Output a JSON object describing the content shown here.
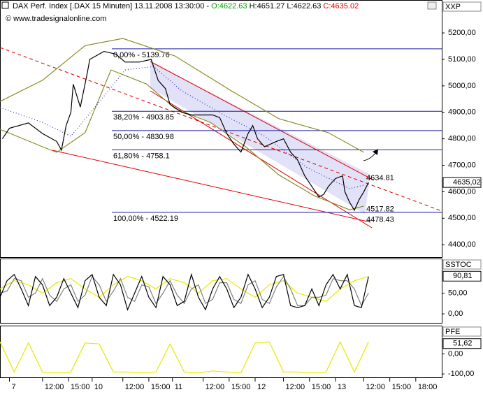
{
  "header": {
    "title": "DAX Perf. Index [.DAX  15 Minuten] 13.11.2008 13:30:00 -",
    "open": "O:4622.63",
    "high_low": "H:4651.27 L:4622.63",
    "close": "C:4635.02"
  },
  "copyright": "© www.tradesignalonline.com",
  "chart_data": [
    {
      "type": "line",
      "title": "XXP",
      "xlim": [
        0,
        187
      ],
      "ylim": [
        4353,
        5319
      ],
      "yticks": [
        {
          "value": 5200,
          "label": "5200,00"
        },
        {
          "value": 5100,
          "label": "5100,00"
        },
        {
          "value": 5000,
          "label": "5000,00"
        },
        {
          "value": 4900,
          "label": "4900,00"
        },
        {
          "value": 4800,
          "label": "4800,00"
        },
        {
          "value": 4700,
          "label": "4700,00"
        },
        {
          "value": 4600,
          "label": "4600,00"
        },
        {
          "value": 4500,
          "label": "4500,00"
        },
        {
          "value": 4400,
          "label": "4400,00"
        }
      ],
      "series": [
        {
          "color": "#8b8b2a",
          "style": "solid",
          "x": [
            0,
            18,
            36,
            52,
            74,
            98,
            118,
            139,
            154
          ],
          "values": [
            4941,
            5021,
            5152,
            5179,
            5113,
            4981,
            4876,
            4823,
            4749
          ]
        },
        {
          "color": "#8b8b2a",
          "style": "solid",
          "x": [
            0,
            18,
            24,
            36,
            47,
            62,
            74,
            89,
            104,
            118,
            133,
            148,
            154
          ],
          "values": [
            4836,
            4770,
            4749,
            4823,
            5060,
            5007,
            4915,
            4862,
            4770,
            4664,
            4585,
            4532,
            4546
          ]
        },
        {
          "color": "#3030d0",
          "style": "dotted",
          "x": [
            0,
            18,
            30,
            41,
            53,
            65,
            77,
            95,
            112,
            130,
            148,
            154
          ],
          "values": [
            4918,
            4862,
            4810,
            4928,
            5060,
            5073,
            4981,
            4889,
            4810,
            4691,
            4612,
            4625
          ]
        },
        {
          "color": "#000000",
          "style": "solid",
          "x": [
            1,
            4,
            12,
            18,
            24,
            26,
            28,
            30,
            31,
            34,
            37,
            38,
            44,
            49,
            53,
            59,
            64,
            67,
            70,
            72,
            77,
            81,
            86,
            90,
            93,
            96,
            99,
            102,
            105,
            107,
            109,
            112,
            117,
            120,
            123,
            126,
            129,
            132,
            135,
            137,
            139,
            142,
            145,
            146,
            148,
            150,
            152,
            154,
            156
          ],
          "values": [
            4800,
            4840,
            4860,
            4820,
            4790,
            4757,
            4850,
            4900,
            5006,
            4920,
            5050,
            5100,
            5130,
            5120,
            5090,
            5090,
            5100,
            5020,
            4990,
            4930,
            4900,
            4890,
            4890,
            4890,
            4880,
            4820,
            4780,
            4750,
            4820,
            4850,
            4800,
            4770,
            4790,
            4800,
            4750,
            4720,
            4660,
            4620,
            4580,
            4590,
            4620,
            4650,
            4660,
            4600,
            4560,
            4530,
            4570,
            4600,
            4635
          ]
        }
      ],
      "levels": [
        {
          "value": 5139.76,
          "label": "0,00% - 5139.76"
        },
        {
          "value": 4903.85,
          "label": "38,20% - 4903.85"
        },
        {
          "value": 4830.98,
          "label": "50,00% - 4830.98"
        },
        {
          "value": 4758.1,
          "label": "61,80% - 4758.1"
        },
        {
          "value": 4522.19,
          "label": "100,00% - 4522.19"
        }
      ],
      "annotations": [
        {
          "value": 4634.81,
          "label": "4634.81"
        },
        {
          "value": 4517.82,
          "label": "4517.82"
        },
        {
          "value": 4478.43,
          "label": "4478.43"
        }
      ],
      "last_value": {
        "value": 4635.02,
        "label": "4635,02"
      }
    },
    {
      "type": "line",
      "title": "SSTOC",
      "xlim": [
        0,
        187
      ],
      "ylim": [
        -21.7,
        131.7
      ],
      "yticks": [
        {
          "value": 50,
          "label": "50,00"
        },
        {
          "value": 0,
          "label": "0,00"
        }
      ],
      "series": [
        {
          "color": "#e8e800",
          "style": "solid",
          "x": [
            0,
            6,
            12,
            18,
            24,
            30,
            36,
            42,
            48,
            54,
            60,
            66,
            72,
            78,
            84,
            90,
            96,
            102,
            108,
            114,
            120,
            126,
            132,
            138,
            144,
            150,
            156
          ],
          "values": [
            60,
            80,
            70,
            50,
            75,
            85,
            60,
            40,
            70,
            90,
            80,
            60,
            85,
            75,
            50,
            80,
            85,
            60,
            40,
            70,
            80,
            50,
            40,
            30,
            60,
            80,
            90
          ]
        },
        {
          "color": "#808080",
          "style": "solid",
          "x": [
            0,
            3,
            6,
            9,
            12,
            15,
            18,
            21,
            24,
            27,
            30,
            33,
            36,
            39,
            42,
            45,
            48,
            51,
            54,
            57,
            60,
            63,
            66,
            69,
            72,
            75,
            78,
            81,
            84,
            87,
            90,
            93,
            96,
            99,
            102,
            105,
            108,
            111,
            114,
            117,
            120,
            123,
            126,
            129,
            132,
            135,
            138,
            141,
            144,
            147,
            150,
            153,
            156
          ],
          "values": [
            50,
            55,
            85,
            80,
            40,
            50,
            85,
            45,
            30,
            60,
            70,
            30,
            45,
            90,
            70,
            30,
            55,
            85,
            40,
            30,
            70,
            65,
            25,
            50,
            80,
            45,
            25,
            60,
            70,
            25,
            35,
            75,
            75,
            35,
            25,
            70,
            80,
            35,
            25,
            65,
            90,
            60,
            20,
            20,
            40,
            40,
            45,
            85,
            80,
            80,
            60,
            20,
            50
          ]
        },
        {
          "color": "#000000",
          "style": "solid",
          "x": [
            0,
            3,
            6,
            9,
            12,
            15,
            18,
            21,
            24,
            27,
            30,
            33,
            36,
            39,
            42,
            45,
            48,
            51,
            54,
            57,
            60,
            63,
            66,
            69,
            72,
            75,
            78,
            81,
            84,
            87,
            90,
            93,
            96,
            99,
            102,
            105,
            108,
            111,
            114,
            117,
            120,
            123,
            126,
            129,
            132,
            135,
            138,
            141,
            144,
            147,
            150,
            153,
            156
          ],
          "values": [
            40,
            80,
            95,
            60,
            20,
            90,
            70,
            20,
            40,
            85,
            50,
            15,
            80,
            95,
            40,
            20,
            95,
            70,
            10,
            50,
            90,
            40,
            15,
            90,
            70,
            20,
            30,
            95,
            40,
            10,
            60,
            90,
            60,
            15,
            40,
            95,
            60,
            15,
            40,
            90,
            95,
            20,
            15,
            20,
            60,
            20,
            70,
            95,
            60,
            95,
            20,
            15,
            90
          ]
        }
      ],
      "last_value": {
        "value": 90.81,
        "label": "90,81"
      }
    },
    {
      "type": "line",
      "title": "PFE",
      "xlim": [
        0,
        187
      ],
      "ylim": [
        -117,
        138
      ],
      "yticks": [
        {
          "value": 0,
          "label": "0,00"
        },
        {
          "value": -100,
          "label": "-100,00"
        }
      ],
      "xticks": [
        {
          "value": 4,
          "label": "7"
        },
        {
          "value": 18,
          "label": "12:00"
        },
        {
          "value": 29,
          "label": "15:00"
        },
        {
          "value": 39,
          "label": "10"
        },
        {
          "value": 52,
          "label": "12:00"
        },
        {
          "value": 63,
          "label": "15:00"
        },
        {
          "value": 73,
          "label": "11"
        },
        {
          "value": 86,
          "label": "12:00"
        },
        {
          "value": 97,
          "label": "15:00"
        },
        {
          "value": 108,
          "label": "12"
        },
        {
          "value": 120,
          "label": "12:00"
        },
        {
          "value": 131,
          "label": "15:00"
        },
        {
          "value": 142,
          "label": "13"
        },
        {
          "value": 154,
          "label": "12:00"
        },
        {
          "value": 165,
          "label": "15:00"
        },
        {
          "value": 176,
          "label": "18:00"
        }
      ],
      "series": [
        {
          "color": "#e8e800",
          "style": "solid",
          "x": [
            0,
            6,
            12,
            18,
            24,
            30,
            36,
            42,
            48,
            54,
            60,
            66,
            72,
            78,
            84,
            90,
            96,
            102,
            108,
            114,
            120,
            126,
            132,
            138,
            144,
            150,
            156
          ],
          "values": [
            60,
            -90,
            55,
            -90,
            -95,
            -90,
            55,
            50,
            -90,
            -90,
            -95,
            -90,
            50,
            -90,
            -95,
            -85,
            -90,
            -95,
            55,
            60,
            -90,
            -90,
            -95,
            -90,
            60,
            -90,
            60
          ]
        }
      ],
      "last_value": {
        "value": 51.62,
        "label": "51,62"
      }
    }
  ]
}
